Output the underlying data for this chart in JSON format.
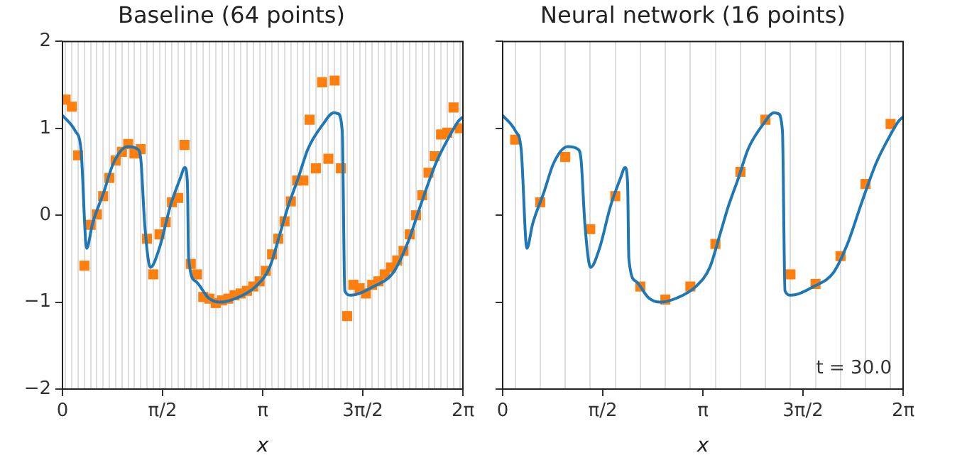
{
  "chart_data": [
    {
      "type": "scatter",
      "title": "Baseline (64 points)",
      "xlabel": "x",
      "xlim": [
        0,
        6.2832
      ],
      "ylim": [
        -2,
        2
      ],
      "yticks": [
        {
          "value": -2,
          "label": "−2"
        },
        {
          "value": -1,
          "label": "−1"
        },
        0,
        1,
        2
      ],
      "grid": "x",
      "xticks": [
        {
          "value": 0,
          "label": "0"
        },
        {
          "value": 1.5708,
          "label": "π/2"
        },
        {
          "value": 3.1416,
          "label": "π"
        },
        {
          "value": 4.7124,
          "label": "3π/2"
        },
        {
          "value": 6.2832,
          "label": "2π"
        },
        {
          "value": 0.049,
          "label": null
        },
        {
          "value": 0.147,
          "label": null
        },
        {
          "value": 0.245,
          "label": null
        },
        {
          "value": 0.344,
          "label": null
        },
        {
          "value": 0.442,
          "label": null
        },
        {
          "value": 0.54,
          "label": null
        },
        {
          "value": 0.638,
          "label": null
        },
        {
          "value": 0.736,
          "label": null
        },
        {
          "value": 0.834,
          "label": null
        },
        {
          "value": 0.933,
          "label": null
        },
        {
          "value": 1.031,
          "label": null
        },
        {
          "value": 1.129,
          "label": null
        },
        {
          "value": 1.227,
          "label": null
        },
        {
          "value": 1.325,
          "label": null
        },
        {
          "value": 1.424,
          "label": null
        },
        {
          "value": 1.522,
          "label": null
        },
        {
          "value": 1.62,
          "label": null
        },
        {
          "value": 1.718,
          "label": null
        },
        {
          "value": 1.816,
          "label": null
        },
        {
          "value": 1.914,
          "label": null
        },
        {
          "value": 2.013,
          "label": null
        },
        {
          "value": 2.111,
          "label": null
        },
        {
          "value": 2.209,
          "label": null
        },
        {
          "value": 2.307,
          "label": null
        },
        {
          "value": 2.405,
          "label": null
        },
        {
          "value": 2.503,
          "label": null
        },
        {
          "value": 2.602,
          "label": null
        },
        {
          "value": 2.7,
          "label": null
        },
        {
          "value": 2.798,
          "label": null
        },
        {
          "value": 2.896,
          "label": null
        },
        {
          "value": 2.994,
          "label": null
        },
        {
          "value": 3.093,
          "label": null
        },
        {
          "value": 3.191,
          "label": null
        },
        {
          "value": 3.289,
          "label": null
        },
        {
          "value": 3.387,
          "label": null
        },
        {
          "value": 3.485,
          "label": null
        },
        {
          "value": 3.583,
          "label": null
        },
        {
          "value": 3.682,
          "label": null
        },
        {
          "value": 3.78,
          "label": null
        },
        {
          "value": 3.878,
          "label": null
        },
        {
          "value": 3.976,
          "label": null
        },
        {
          "value": 4.074,
          "label": null
        },
        {
          "value": 4.172,
          "label": null
        },
        {
          "value": 4.271,
          "label": null
        },
        {
          "value": 4.369,
          "label": null
        },
        {
          "value": 4.467,
          "label": null
        },
        {
          "value": 4.565,
          "label": null
        },
        {
          "value": 4.663,
          "label": null
        },
        {
          "value": 4.761,
          "label": null
        },
        {
          "value": 4.86,
          "label": null
        },
        {
          "value": 4.958,
          "label": null
        },
        {
          "value": 5.056,
          "label": null
        },
        {
          "value": 5.154,
          "label": null
        },
        {
          "value": 5.252,
          "label": null
        },
        {
          "value": 5.351,
          "label": null
        },
        {
          "value": 5.449,
          "label": null
        },
        {
          "value": 5.547,
          "label": null
        },
        {
          "value": 5.645,
          "label": null
        },
        {
          "value": 5.743,
          "label": null
        },
        {
          "value": 5.841,
          "label": null
        },
        {
          "value": 5.94,
          "label": null
        },
        {
          "value": 6.038,
          "label": null
        },
        {
          "value": 6.136,
          "label": null
        },
        {
          "value": 6.234,
          "label": null
        }
      ],
      "series": [
        {
          "type": "line",
          "color": "#1f77b4",
          "marker": "none",
          "x": [
            0,
            0.2,
            0.29,
            0.38,
            0.47,
            0.65,
            0.8,
            1.02,
            1.18,
            1.23,
            1.29,
            1.38,
            1.52,
            1.69,
            1.85,
            1.92,
            1.96,
            1.98,
            2.09,
            2.29,
            2.47,
            2.74,
            3.03,
            3.25,
            3.41,
            3.54,
            3.7,
            3.85,
            4.08,
            4.26,
            4.32,
            4.39,
            4.43,
            4.52,
            4.88,
            5.19,
            5.41,
            5.64,
            5.86,
            6.08,
            6.22,
            6.2832
          ],
          "values": [
            1.15,
            0.97,
            0.76,
            -0.38,
            -0.1,
            0.27,
            0.6,
            0.79,
            0.76,
            0.64,
            -0.1,
            -0.6,
            -0.38,
            0.1,
            0.43,
            0.55,
            0.38,
            -0.5,
            -0.76,
            -0.95,
            -1.0,
            -0.95,
            -0.82,
            -0.6,
            -0.22,
            0.1,
            0.43,
            0.76,
            1.04,
            1.18,
            1.17,
            0.97,
            -0.87,
            -0.92,
            -0.82,
            -0.66,
            -0.33,
            0.16,
            0.6,
            0.92,
            1.09,
            1.13
          ]
        },
        {
          "type": "scatter",
          "color": "#ff7f0e",
          "marker": "square",
          "x": [
            0.049,
            0.147,
            0.245,
            0.344,
            0.442,
            0.54,
            0.638,
            0.736,
            0.834,
            0.933,
            1.031,
            1.129,
            1.227,
            1.325,
            1.424,
            1.522,
            1.62,
            1.718,
            1.816,
            1.914,
            2.013,
            2.111,
            2.209,
            2.307,
            2.405,
            2.503,
            2.602,
            2.7,
            2.798,
            2.896,
            2.994,
            3.093,
            3.191,
            3.289,
            3.387,
            3.485,
            3.583,
            3.682,
            3.78,
            3.878,
            3.976,
            4.074,
            4.172,
            4.271,
            4.369,
            4.467,
            4.565,
            4.663,
            4.761,
            4.86,
            4.958,
            5.056,
            5.154,
            5.252,
            5.351,
            5.449,
            5.547,
            5.645,
            5.743,
            5.841,
            5.94,
            6.038,
            6.136,
            6.234
          ],
          "values": [
            1.33,
            1.25,
            0.69,
            -0.58,
            -0.11,
            0.01,
            0.22,
            0.43,
            0.63,
            0.73,
            0.82,
            0.71,
            0.76,
            -0.27,
            -0.68,
            -0.22,
            -0.08,
            0.15,
            0.2,
            0.81,
            -0.56,
            -0.68,
            -0.94,
            -0.96,
            -1.01,
            -0.98,
            -0.96,
            -0.92,
            -0.9,
            -0.87,
            -0.82,
            -0.76,
            -0.64,
            -0.45,
            -0.27,
            -0.07,
            0.16,
            0.4,
            0.4,
            1.1,
            0.54,
            1.53,
            0.65,
            1.55,
            0.54,
            -1.16,
            -0.8,
            -0.84,
            -0.9,
            -0.8,
            -0.76,
            -0.68,
            -0.6,
            -0.52,
            -0.41,
            -0.22,
            0.0,
            0.23,
            0.49,
            0.68,
            0.93,
            0.95,
            1.24,
            1.0
          ]
        }
      ]
    },
    {
      "type": "scatter",
      "title": "Neural network (16 points)",
      "xlabel": "x",
      "xlim": [
        0,
        6.2832
      ],
      "ylim": [
        -2,
        2
      ],
      "yticks": [
        {
          "value": -2,
          "label": null
        },
        {
          "value": -1,
          "label": null
        },
        {
          "value": 0,
          "label": null
        },
        {
          "value": 1,
          "label": null
        },
        {
          "value": 2,
          "label": null
        }
      ],
      "grid": "x",
      "tick_labels": "x",
      "annotations": [
        "t = 30.0"
      ],
      "xticks": [
        {
          "value": 0,
          "label": "0"
        },
        {
          "value": 1.5708,
          "label": "π/2"
        },
        {
          "value": 3.1416,
          "label": "π"
        },
        {
          "value": 4.7124,
          "label": "3π/2"
        },
        {
          "value": 6.2832,
          "label": "2π"
        },
        {
          "value": 0.196,
          "label": null
        },
        {
          "value": 0.589,
          "label": null
        },
        {
          "value": 0.982,
          "label": null
        },
        {
          "value": 1.374,
          "label": null
        },
        {
          "value": 1.767,
          "label": null
        },
        {
          "value": 2.16,
          "label": null
        },
        {
          "value": 2.553,
          "label": null
        },
        {
          "value": 2.945,
          "label": null
        },
        {
          "value": 3.338,
          "label": null
        },
        {
          "value": 3.731,
          "label": null
        },
        {
          "value": 4.123,
          "label": null
        },
        {
          "value": 4.516,
          "label": null
        },
        {
          "value": 4.909,
          "label": null
        },
        {
          "value": 5.301,
          "label": null
        },
        {
          "value": 5.694,
          "label": null
        },
        {
          "value": 6.087,
          "label": null
        }
      ],
      "series": [
        {
          "type": "line",
          "color": "#1f77b4",
          "marker": "none",
          "x": [
            0,
            0.2,
            0.29,
            0.38,
            0.47,
            0.65,
            0.8,
            1.02,
            1.18,
            1.23,
            1.29,
            1.38,
            1.52,
            1.69,
            1.85,
            1.92,
            1.96,
            1.98,
            2.09,
            2.29,
            2.47,
            2.74,
            3.03,
            3.25,
            3.41,
            3.54,
            3.7,
            3.85,
            4.08,
            4.26,
            4.32,
            4.39,
            4.43,
            4.52,
            4.88,
            5.19,
            5.41,
            5.64,
            5.86,
            6.08,
            6.22,
            6.2832
          ],
          "values": [
            1.15,
            0.97,
            0.76,
            -0.38,
            -0.1,
            0.27,
            0.6,
            0.79,
            0.76,
            0.64,
            -0.1,
            -0.6,
            -0.38,
            0.1,
            0.43,
            0.55,
            0.38,
            -0.5,
            -0.76,
            -0.95,
            -1.0,
            -0.95,
            -0.82,
            -0.6,
            -0.22,
            0.1,
            0.43,
            0.76,
            1.04,
            1.18,
            1.17,
            0.97,
            -0.87,
            -0.92,
            -0.82,
            -0.66,
            -0.33,
            0.16,
            0.6,
            0.92,
            1.09,
            1.13
          ]
        },
        {
          "type": "scatter",
          "color": "#ff7f0e",
          "marker": "square",
          "x": [
            0.196,
            0.589,
            0.982,
            1.374,
            1.767,
            2.16,
            2.553,
            2.945,
            3.338,
            3.731,
            4.123,
            4.516,
            4.909,
            5.301,
            5.694,
            6.087
          ],
          "values": [
            0.87,
            0.15,
            0.67,
            -0.16,
            0.22,
            -0.82,
            -0.97,
            -0.82,
            -0.33,
            0.5,
            1.1,
            -0.68,
            -0.79,
            -0.47,
            0.36,
            1.05
          ]
        }
      ]
    }
  ]
}
